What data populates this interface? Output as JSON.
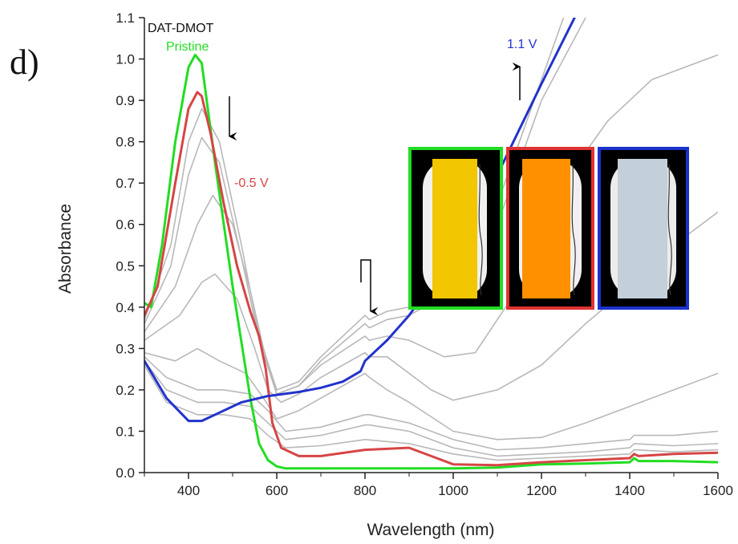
{
  "chart_data": {
    "type": "line",
    "title": "DAT-DMOT",
    "panel_label": "d)",
    "xlabel": "Wavelength (nm)",
    "ylabel": "Absorbance",
    "xlim": [
      300,
      1600
    ],
    "ylim": [
      0,
      1.1
    ],
    "x_ticks": [
      400,
      600,
      800,
      1000,
      1200,
      1400,
      1600
    ],
    "y_ticks": [
      0.0,
      0.1,
      0.2,
      0.3,
      0.4,
      0.5,
      0.6,
      0.7,
      0.8,
      0.9,
      1.0,
      1.1
    ],
    "grid": false,
    "annotations": {
      "pristine": "Pristine",
      "minus_half_v": "-0.5 V",
      "one_one_v": "1.1 V"
    },
    "colors": {
      "pristine": "#22dd22",
      "minus_half_v": "#d64545",
      "one_one_v": "#2233cc",
      "intermediate": "#b8b8b8"
    },
    "series": [
      {
        "name": "Pristine",
        "color": "#22dd22",
        "x": [
          300,
          315,
          340,
          370,
          400,
          415,
          430,
          460,
          500,
          540,
          560,
          580,
          600,
          620,
          700,
          800,
          900,
          1000,
          1100,
          1200,
          1300,
          1400,
          1410,
          1420,
          1500,
          1600
        ],
        "y": [
          0.41,
          0.4,
          0.55,
          0.8,
          0.98,
          1.01,
          0.99,
          0.75,
          0.45,
          0.18,
          0.07,
          0.03,
          0.015,
          0.01,
          0.01,
          0.01,
          0.01,
          0.01,
          0.012,
          0.02,
          0.022,
          0.025,
          0.035,
          0.028,
          0.028,
          0.025
        ]
      },
      {
        "name": "-0.5 V",
        "color": "#d64545",
        "x": [
          300,
          330,
          370,
          400,
          420,
          430,
          450,
          480,
          510,
          540,
          560,
          575,
          590,
          610,
          650,
          700,
          800,
          900,
          950,
          1000,
          1100,
          1200,
          1300,
          1400,
          1410,
          1420,
          1500,
          1600
        ],
        "y": [
          0.38,
          0.45,
          0.7,
          0.88,
          0.92,
          0.91,
          0.82,
          0.65,
          0.5,
          0.39,
          0.33,
          0.25,
          0.12,
          0.06,
          0.04,
          0.04,
          0.055,
          0.06,
          0.04,
          0.02,
          0.018,
          0.025,
          0.03,
          0.035,
          0.045,
          0.04,
          0.045,
          0.048
        ]
      },
      {
        "name": "1.1 V",
        "color": "#2233cc",
        "x": [
          300,
          350,
          400,
          430,
          470,
          520,
          580,
          650,
          700,
          750,
          790,
          800,
          810,
          850,
          900,
          1000,
          1100,
          1200,
          1275
        ],
        "y": [
          0.27,
          0.18,
          0.125,
          0.125,
          0.145,
          0.17,
          0.185,
          0.195,
          0.205,
          0.22,
          0.245,
          0.27,
          0.28,
          0.32,
          0.38,
          0.53,
          0.72,
          0.94,
          1.1
        ]
      },
      {
        "name": "",
        "color": "#b8b8b8",
        "x": [
          300,
          360,
          400,
          430,
          470,
          520,
          560,
          600,
          650,
          700,
          800,
          810,
          850,
          900,
          1000,
          1100,
          1200,
          1250
        ],
        "y": [
          0.37,
          0.55,
          0.8,
          0.88,
          0.8,
          0.55,
          0.33,
          0.2,
          0.22,
          0.28,
          0.38,
          0.37,
          0.39,
          0.4,
          0.47,
          0.65,
          0.95,
          1.1
        ]
      },
      {
        "name": "",
        "color": "#b8b8b8",
        "x": [
          300,
          360,
          400,
          430,
          470,
          520,
          560,
          600,
          650,
          700,
          800,
          810,
          850,
          900,
          1000,
          1100,
          1200,
          1300
        ],
        "y": [
          0.36,
          0.5,
          0.72,
          0.81,
          0.75,
          0.52,
          0.32,
          0.19,
          0.21,
          0.27,
          0.36,
          0.35,
          0.37,
          0.38,
          0.44,
          0.6,
          0.9,
          1.1
        ]
      },
      {
        "name": "",
        "color": "#b8b8b8",
        "x": [
          300,
          370,
          420,
          455,
          500,
          540,
          570,
          600,
          650,
          700,
          800,
          810,
          850,
          900,
          980,
          1050,
          1150,
          1250,
          1350,
          1450,
          1600
        ],
        "y": [
          0.34,
          0.45,
          0.6,
          0.67,
          0.6,
          0.44,
          0.3,
          0.19,
          0.21,
          0.26,
          0.33,
          0.32,
          0.33,
          0.32,
          0.28,
          0.29,
          0.45,
          0.7,
          0.85,
          0.95,
          1.01
        ]
      },
      {
        "name": "",
        "color": "#b8b8b8",
        "x": [
          300,
          380,
          430,
          460,
          510,
          550,
          580,
          610,
          650,
          700,
          800,
          810,
          850,
          900,
          950,
          1000,
          1100,
          1200,
          1300,
          1400,
          1500,
          1600
        ],
        "y": [
          0.32,
          0.38,
          0.46,
          0.48,
          0.42,
          0.3,
          0.2,
          0.17,
          0.19,
          0.23,
          0.29,
          0.28,
          0.28,
          0.24,
          0.2,
          0.175,
          0.2,
          0.26,
          0.36,
          0.45,
          0.55,
          0.63
        ]
      },
      {
        "name": "",
        "color": "#b8b8b8",
        "x": [
          300,
          370,
          420,
          470,
          530,
          570,
          600,
          650,
          700,
          800,
          810,
          850,
          900,
          1000,
          1100,
          1200,
          1300,
          1400,
          1500,
          1600
        ],
        "y": [
          0.29,
          0.27,
          0.3,
          0.27,
          0.24,
          0.18,
          0.13,
          0.15,
          0.18,
          0.24,
          0.23,
          0.2,
          0.17,
          0.1,
          0.08,
          0.085,
          0.12,
          0.16,
          0.2,
          0.24
        ]
      },
      {
        "name": "",
        "color": "#b8b8b8",
        "x": [
          300,
          350,
          420,
          480,
          540,
          580,
          620,
          700,
          800,
          810,
          900,
          1000,
          1100,
          1200,
          1300,
          1400,
          1410,
          1500,
          1600
        ],
        "y": [
          0.28,
          0.23,
          0.2,
          0.2,
          0.19,
          0.15,
          0.1,
          0.11,
          0.14,
          0.14,
          0.12,
          0.08,
          0.055,
          0.06,
          0.07,
          0.08,
          0.09,
          0.09,
          0.1
        ]
      },
      {
        "name": "",
        "color": "#b8b8b8",
        "x": [
          300,
          350,
          420,
          480,
          540,
          580,
          620,
          700,
          800,
          810,
          900,
          1000,
          1100,
          1200,
          1300,
          1400,
          1410,
          1500,
          1600
        ],
        "y": [
          0.27,
          0.2,
          0.17,
          0.17,
          0.16,
          0.12,
          0.08,
          0.09,
          0.115,
          0.115,
          0.1,
          0.06,
          0.04,
          0.045,
          0.05,
          0.06,
          0.07,
          0.065,
          0.07
        ]
      },
      {
        "name": "",
        "color": "#b8b8b8",
        "x": [
          300,
          350,
          420,
          480,
          540,
          580,
          620,
          700,
          800,
          900,
          1000,
          1100,
          1200,
          1300,
          1400,
          1410,
          1500,
          1600
        ],
        "y": [
          0.26,
          0.17,
          0.14,
          0.14,
          0.13,
          0.09,
          0.06,
          0.065,
          0.08,
          0.07,
          0.045,
          0.03,
          0.035,
          0.04,
          0.045,
          0.055,
          0.05,
          0.055
        ]
      }
    ]
  }
}
